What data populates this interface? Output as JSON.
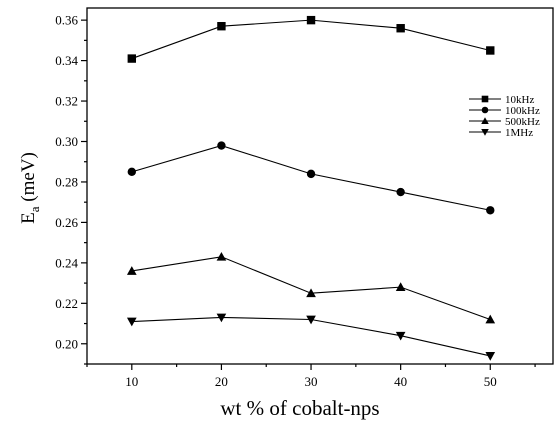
{
  "chart_data": {
    "type": "line",
    "xlabel": "wt % of cobalt-nps",
    "ylabel_main": "E",
    "ylabel_sub": "a",
    "ylabel_unit": " (meV)",
    "x": [
      10,
      20,
      30,
      40,
      50
    ],
    "xlim": [
      5,
      57
    ],
    "ylim": [
      0.19,
      0.366
    ],
    "xticks": [
      10,
      20,
      30,
      40,
      50
    ],
    "yticks": [
      "0.20",
      "0.22",
      "0.24",
      "0.26",
      "0.28",
      "0.30",
      "0.32",
      "0.34",
      "0.36"
    ],
    "grid": false,
    "legend_position": "right",
    "series": [
      {
        "name": "10kHz",
        "marker": "square",
        "values": [
          0.341,
          0.357,
          0.36,
          0.356,
          0.345
        ]
      },
      {
        "name": "100kHz",
        "marker": "circle",
        "values": [
          0.285,
          0.298,
          0.284,
          0.275,
          0.266
        ]
      },
      {
        "name": "500kHz",
        "marker": "triangle-up",
        "values": [
          0.236,
          0.243,
          0.225,
          0.228,
          0.212
        ]
      },
      {
        "name": "1MHz",
        "marker": "triangle-down",
        "values": [
          0.211,
          0.213,
          0.212,
          0.204,
          0.194
        ]
      }
    ]
  }
}
